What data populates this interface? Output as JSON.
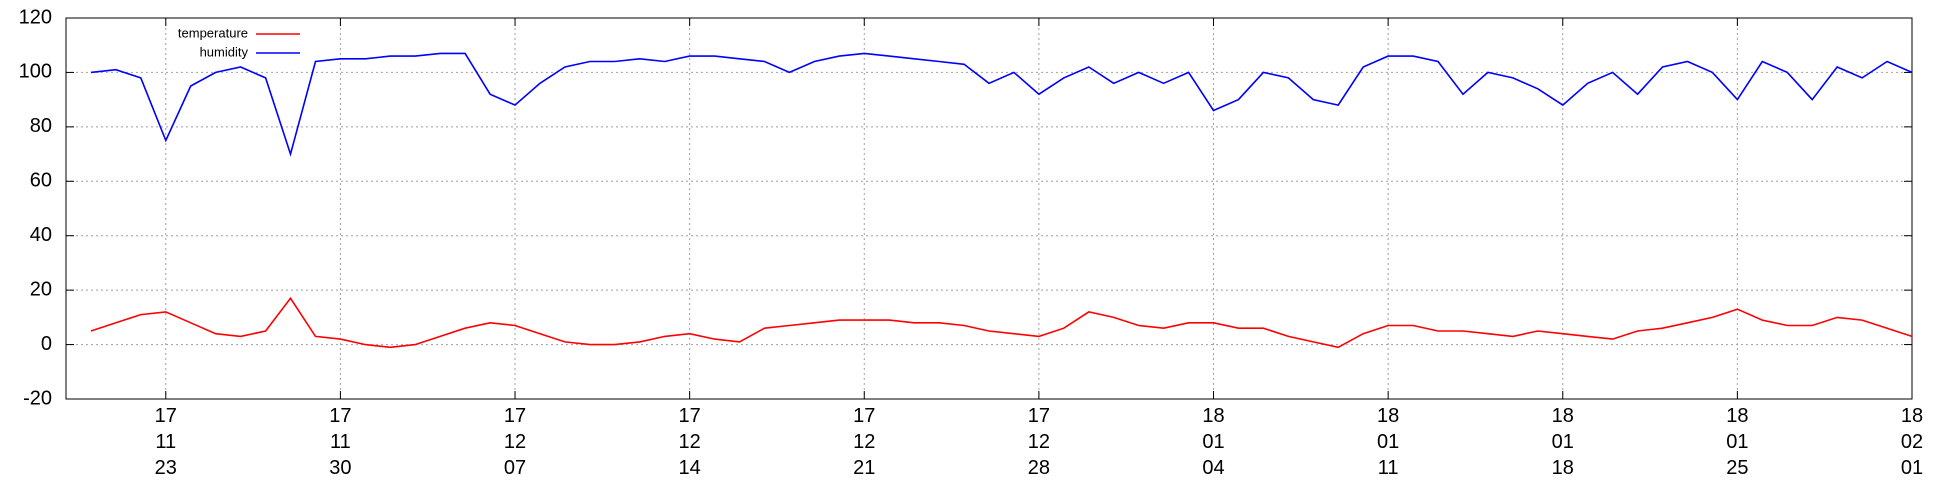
{
  "chart_data": {
    "type": "line",
    "x": [
      "2017-11-20",
      "2017-11-21",
      "2017-11-22",
      "2017-11-23",
      "2017-11-24",
      "2017-11-25",
      "2017-11-26",
      "2017-11-27",
      "2017-11-28",
      "2017-11-29",
      "2017-11-30",
      "2017-12-01",
      "2017-12-02",
      "2017-12-03",
      "2017-12-04",
      "2017-12-05",
      "2017-12-06",
      "2017-12-07",
      "2017-12-08",
      "2017-12-09",
      "2017-12-10",
      "2017-12-11",
      "2017-12-12",
      "2017-12-13",
      "2017-12-14",
      "2017-12-15",
      "2017-12-16",
      "2017-12-17",
      "2017-12-18",
      "2017-12-19",
      "2017-12-20",
      "2017-12-21",
      "2017-12-22",
      "2017-12-23",
      "2017-12-24",
      "2017-12-25",
      "2017-12-26",
      "2017-12-27",
      "2017-12-28",
      "2017-12-29",
      "2017-12-30",
      "2017-12-31",
      "2018-01-01",
      "2018-01-02",
      "2018-01-03",
      "2018-01-04",
      "2018-01-05",
      "2018-01-06",
      "2018-01-07",
      "2018-01-08",
      "2018-01-09",
      "2018-01-10",
      "2018-01-11",
      "2018-01-12",
      "2018-01-13",
      "2018-01-14",
      "2018-01-15",
      "2018-01-16",
      "2018-01-17",
      "2018-01-18",
      "2018-01-19",
      "2018-01-20",
      "2018-01-21",
      "2018-01-22",
      "2018-01-23",
      "2018-01-24",
      "2018-01-25",
      "2018-01-26",
      "2018-01-27",
      "2018-01-28",
      "2018-01-29",
      "2018-01-30",
      "2018-01-31",
      "2018-02-01"
    ],
    "series": [
      {
        "name": "temperature",
        "color": "#ff0000",
        "values": [
          5,
          8,
          11,
          12,
          8,
          4,
          3,
          5,
          17,
          3,
          2,
          0,
          -1,
          0,
          3,
          6,
          8,
          7,
          4,
          1,
          0,
          0,
          1,
          3,
          4,
          2,
          1,
          6,
          7,
          8,
          9,
          9,
          9,
          8,
          8,
          7,
          5,
          4,
          3,
          6,
          12,
          10,
          7,
          6,
          8,
          8,
          6,
          6,
          3,
          1,
          -1,
          4,
          7,
          7,
          5,
          5,
          4,
          3,
          5,
          4,
          3,
          2,
          5,
          6,
          8,
          10,
          13,
          9,
          7,
          7,
          10,
          9,
          6,
          3
        ]
      },
      {
        "name": "humidity",
        "color": "#0000ff",
        "values": [
          100,
          101,
          98,
          75,
          95,
          100,
          102,
          98,
          70,
          104,
          105,
          105,
          106,
          106,
          107,
          107,
          92,
          88,
          96,
          102,
          104,
          104,
          105,
          104,
          106,
          106,
          105,
          104,
          100,
          104,
          106,
          107,
          106,
          105,
          104,
          103,
          96,
          100,
          92,
          98,
          102,
          96,
          100,
          96,
          100,
          86,
          90,
          100,
          98,
          90,
          88,
          102,
          106,
          106,
          104,
          92,
          100,
          98,
          94,
          88,
          96,
          100,
          92,
          102,
          104,
          100,
          90,
          104,
          100,
          90,
          102,
          98,
          104,
          100
        ]
      }
    ],
    "xlim": [
      "2017-11-19",
      "2018-02-01"
    ],
    "xticks": [
      {
        "value": "2017-11-23",
        "label": "17\n11\n23"
      },
      {
        "value": "2017-11-30",
        "label": "17\n11\n30"
      },
      {
        "value": "2017-12-07",
        "label": "17\n12\n07"
      },
      {
        "value": "2017-12-14",
        "label": "17\n12\n14"
      },
      {
        "value": "2017-12-21",
        "label": "17\n12\n21"
      },
      {
        "value": "2017-12-28",
        "label": "17\n12\n28"
      },
      {
        "value": "2018-01-04",
        "label": "18\n01\n04"
      },
      {
        "value": "2018-01-11",
        "label": "18\n01\n11"
      },
      {
        "value": "2018-01-18",
        "label": "18\n01\n18"
      },
      {
        "value": "2018-01-25",
        "label": "18\n01\n25"
      },
      {
        "value": "2018-02-01",
        "label": "18\n02\n01"
      }
    ],
    "ylim": [
      -20,
      120
    ],
    "yticks": [
      -20,
      0,
      20,
      40,
      60,
      80,
      100,
      120
    ],
    "grid": true,
    "legend": "top-left"
  }
}
